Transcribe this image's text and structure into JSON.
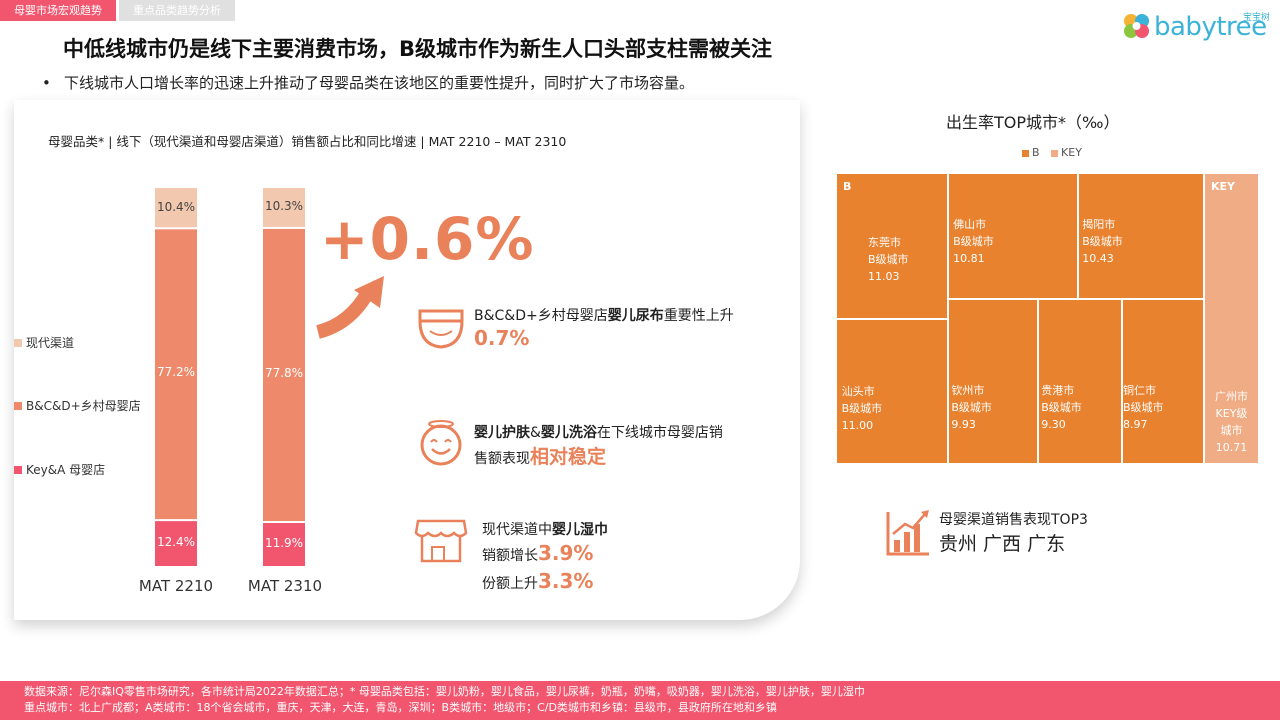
{
  "tabs": [
    "母婴市场宏观趋势",
    "重点品类趋势分析"
  ],
  "logo": {
    "text": "babytree",
    "badge": "宝宝树"
  },
  "title": "中低线城市仍是线下主要消费市场，B级城市作为新生人口头部支柱需被关注",
  "bullet": "下线城市人口增长率的迅速上升推动了母婴品类在该地区的重要性提升，同时扩大了市场容量。",
  "colors": {
    "accent": "#e9825a",
    "pink": "#f2566f",
    "modern": "#f2c8ae",
    "bcd": "#ee8a6b",
    "key": "#f2566f"
  },
  "chart_data": [
    {
      "type": "bar",
      "stacked": true,
      "title": "母婴品类* | 线下（现代渠道和母婴店渠道）销售额占比和同比增速 | MAT 2210 – MAT 2310",
      "categories": [
        "MAT 2210",
        "MAT 2310"
      ],
      "series": [
        {
          "name": "Key&A 母婴店",
          "values": [
            12.4,
            11.9
          ],
          "labels": [
            "12.4%",
            "11.9%"
          ]
        },
        {
          "name": "B&C&D+乡村母婴店",
          "values": [
            77.2,
            77.8
          ],
          "labels": [
            "77.2%",
            "77.8%"
          ]
        },
        {
          "name": "现代渠道",
          "values": [
            10.4,
            10.3
          ],
          "labels": [
            "10.4%",
            "10.3%"
          ]
        }
      ],
      "legend_order": [
        "现代渠道",
        "B&C&D+乡村母婴店",
        "Key&A 母婴店"
      ],
      "legend_position": "left",
      "ylim": [
        0,
        100
      ],
      "annotation": "+0.6%"
    },
    {
      "type": "treemap",
      "title": "出生率TOP城市*（‰）",
      "legend": [
        "B",
        "KEY"
      ],
      "groups": [
        {
          "name": "B",
          "items": [
            {
              "city": "东莞市",
              "tier": "B级城市",
              "value": 11.03
            },
            {
              "city": "佛山市",
              "tier": "B级城市",
              "value": 10.81
            },
            {
              "city": "揭阳市",
              "tier": "B级城市",
              "value": 10.43
            },
            {
              "city": "汕头市",
              "tier": "B级城市",
              "value": 11.0
            },
            {
              "city": "钦州市",
              "tier": "B级城市",
              "value": 9.93
            },
            {
              "city": "贵港市",
              "tier": "B级城市",
              "value": 9.3
            },
            {
              "city": "铜仁市",
              "tier": "B级城市",
              "value": 8.97
            }
          ]
        },
        {
          "name": "KEY",
          "items": [
            {
              "city": "广州市",
              "tier": "KEY级城市",
              "value": 10.71
            }
          ]
        }
      ]
    }
  ],
  "features": [
    {
      "icon": "diaper-icon",
      "pre": "B&C&D+乡村母婴店",
      "bold": "婴儿尿布",
      "post": "重要性上升",
      "value": "0.7%"
    },
    {
      "icon": "smile-icon",
      "bold1": "婴儿护肤",
      "mid": "&",
      "bold2": "婴儿洗浴",
      "post": "在下线城市母婴店销",
      "line2": "售额表现",
      "highlight": "相对稳定"
    },
    {
      "icon": "store-icon",
      "pre": "现代渠道中",
      "bold": "婴儿湿巾",
      "line2a": "销额增长",
      "value_a": "3.9%",
      "line2b": "份额上升",
      "value_b": "3.3%"
    }
  ],
  "top3": {
    "icon": "growth-chart-icon",
    "title": "母婴渠道销售表现TOP3",
    "cities": "贵州 广西 广东"
  },
  "footer": {
    "line1": "数据来源：尼尔森IQ零售市场研究，各市统计局2022年数据汇总；* 母婴品类包括：婴儿奶粉，婴儿食品，婴儿尿裤，奶瓶，奶嘴，吸奶器，婴儿洗浴，婴儿护肤，婴儿湿巾",
    "line2": "重点城市：北上广成都；A类城市：18个省会城市，重庆，天津，大连，青岛，深圳；B类城市：地级市；C/D类城市和乡镇：县级市，县政府所在地和乡镇"
  }
}
